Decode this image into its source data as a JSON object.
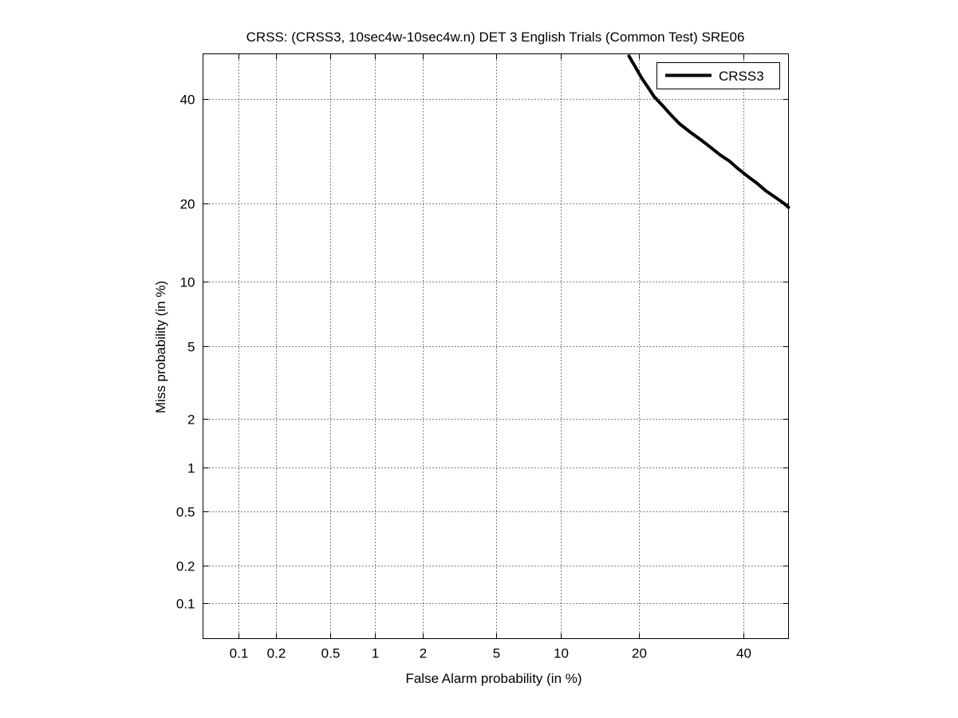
{
  "chart_data": {
    "type": "line",
    "title": "CRSS: (CRSS3, 10sec4w-10sec4w.n) DET 3 English Trials (Common Test) SRE06",
    "xlabel": "False Alarm probability (in %)",
    "ylabel": "Miss probability (in %)",
    "x_scale": "normal-deviate",
    "y_scale": "normal-deviate",
    "xlim": [
      0.05,
      50
    ],
    "ylim": [
      0.05,
      50
    ],
    "xticks": [
      0.1,
      0.2,
      0.5,
      1,
      2,
      5,
      10,
      20,
      40
    ],
    "xtick_labels": [
      "0.1",
      "0.2",
      "0.5",
      "1",
      "2",
      "5",
      "10",
      "20",
      "40"
    ],
    "yticks": [
      0.1,
      0.2,
      0.5,
      1,
      2,
      5,
      10,
      20,
      40
    ],
    "ytick_labels": [
      "0.1",
      "0.2",
      "0.5",
      "1",
      "2",
      "5",
      "10",
      "20",
      "40"
    ],
    "grid": true,
    "legend_position": "top-right",
    "series": [
      {
        "name": "CRSS3",
        "color": "#000000",
        "x": [
          18.5,
          19.5,
          20.5,
          21.5,
          22.5,
          24.0,
          25.5,
          27.0,
          29.0,
          31.0,
          33.0,
          35.0,
          37.0,
          39.0,
          41.0,
          43.0,
          45.0,
          47.0,
          49.0,
          50.0
        ],
        "y": [
          49.5,
          47.0,
          44.5,
          42.5,
          40.5,
          38.5,
          36.5,
          34.7,
          33.0,
          31.5,
          30.0,
          28.5,
          27.3,
          25.8,
          24.5,
          23.3,
          22.0,
          21.0,
          20.0,
          19.4
        ]
      }
    ]
  }
}
